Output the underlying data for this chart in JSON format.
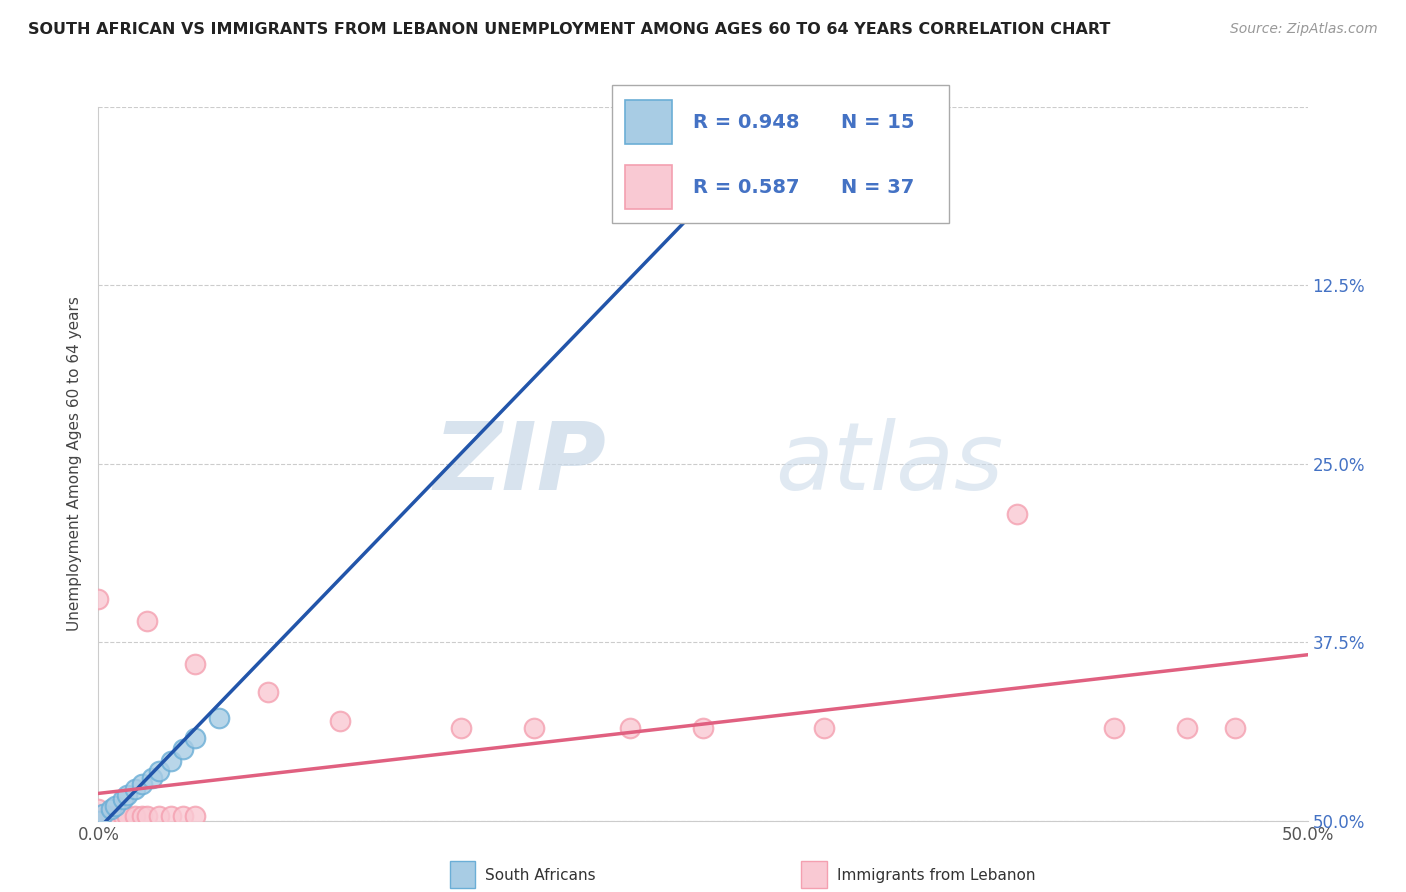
{
  "title": "SOUTH AFRICAN VS IMMIGRANTS FROM LEBANON UNEMPLOYMENT AMONG AGES 60 TO 64 YEARS CORRELATION CHART",
  "source": "Source: ZipAtlas.com",
  "ylabel": "Unemployment Among Ages 60 to 64 years",
  "xlim": [
    0.0,
    0.5
  ],
  "ylim": [
    0.0,
    0.5
  ],
  "xticks": [
    0.0,
    0.125,
    0.25,
    0.375,
    0.5
  ],
  "yticks": [
    0.0,
    0.125,
    0.25,
    0.375,
    0.5
  ],
  "xticklabels": [
    "0.0%",
    "",
    "",
    "",
    "50.0%"
  ],
  "yticklabels": [
    "",
    "",
    "",
    "",
    ""
  ],
  "right_yticklabels": [
    "50.0%",
    "37.5%",
    "25.0%",
    "12.5%",
    ""
  ],
  "bottom_legend_labels": [
    "South Africans",
    "Immigrants from Lebanon"
  ],
  "legend_R1": "R = 0.948",
  "legend_N1": "N = 15",
  "legend_R2": "R = 0.587",
  "legend_N2": "N = 37",
  "blue_color": "#6baed6",
  "blue_fill": "#a8cce4",
  "pink_color": "#f4a0b0",
  "pink_fill": "#f9c9d3",
  "trend_blue": "#2255aa",
  "trend_pink": "#e06080",
  "watermark_zip": "ZIP",
  "watermark_atlas": "atlas",
  "sa_points": [
    [
      0.0,
      0.0
    ],
    [
      0.002,
      0.005
    ],
    [
      0.005,
      0.008
    ],
    [
      0.007,
      0.01
    ],
    [
      0.01,
      0.015
    ],
    [
      0.012,
      0.018
    ],
    [
      0.015,
      0.022
    ],
    [
      0.018,
      0.026
    ],
    [
      0.022,
      0.03
    ],
    [
      0.025,
      0.035
    ],
    [
      0.03,
      0.042
    ],
    [
      0.035,
      0.05
    ],
    [
      0.04,
      0.058
    ],
    [
      0.05,
      0.072
    ],
    [
      0.27,
      0.472
    ]
  ],
  "leb_points": [
    [
      0.0,
      0.0
    ],
    [
      0.0,
      0.0
    ],
    [
      0.0,
      0.0
    ],
    [
      0.0,
      0.0
    ],
    [
      0.0,
      0.005
    ],
    [
      0.0,
      0.008
    ],
    [
      0.001,
      0.0
    ],
    [
      0.002,
      0.0
    ],
    [
      0.003,
      0.0
    ],
    [
      0.004,
      0.0
    ],
    [
      0.005,
      0.0
    ],
    [
      0.005,
      0.003
    ],
    [
      0.007,
      0.002
    ],
    [
      0.008,
      0.0
    ],
    [
      0.01,
      0.003
    ],
    [
      0.012,
      0.003
    ],
    [
      0.015,
      0.003
    ],
    [
      0.018,
      0.003
    ],
    [
      0.02,
      0.003
    ],
    [
      0.025,
      0.003
    ],
    [
      0.03,
      0.003
    ],
    [
      0.035,
      0.003
    ],
    [
      0.04,
      0.003
    ],
    [
      0.0,
      0.155
    ],
    [
      0.02,
      0.14
    ],
    [
      0.04,
      0.11
    ],
    [
      0.07,
      0.09
    ],
    [
      0.1,
      0.07
    ],
    [
      0.15,
      0.065
    ],
    [
      0.18,
      0.065
    ],
    [
      0.22,
      0.065
    ],
    [
      0.25,
      0.065
    ],
    [
      0.3,
      0.065
    ],
    [
      0.38,
      0.215
    ],
    [
      0.42,
      0.065
    ],
    [
      0.45,
      0.065
    ],
    [
      0.47,
      0.065
    ]
  ]
}
